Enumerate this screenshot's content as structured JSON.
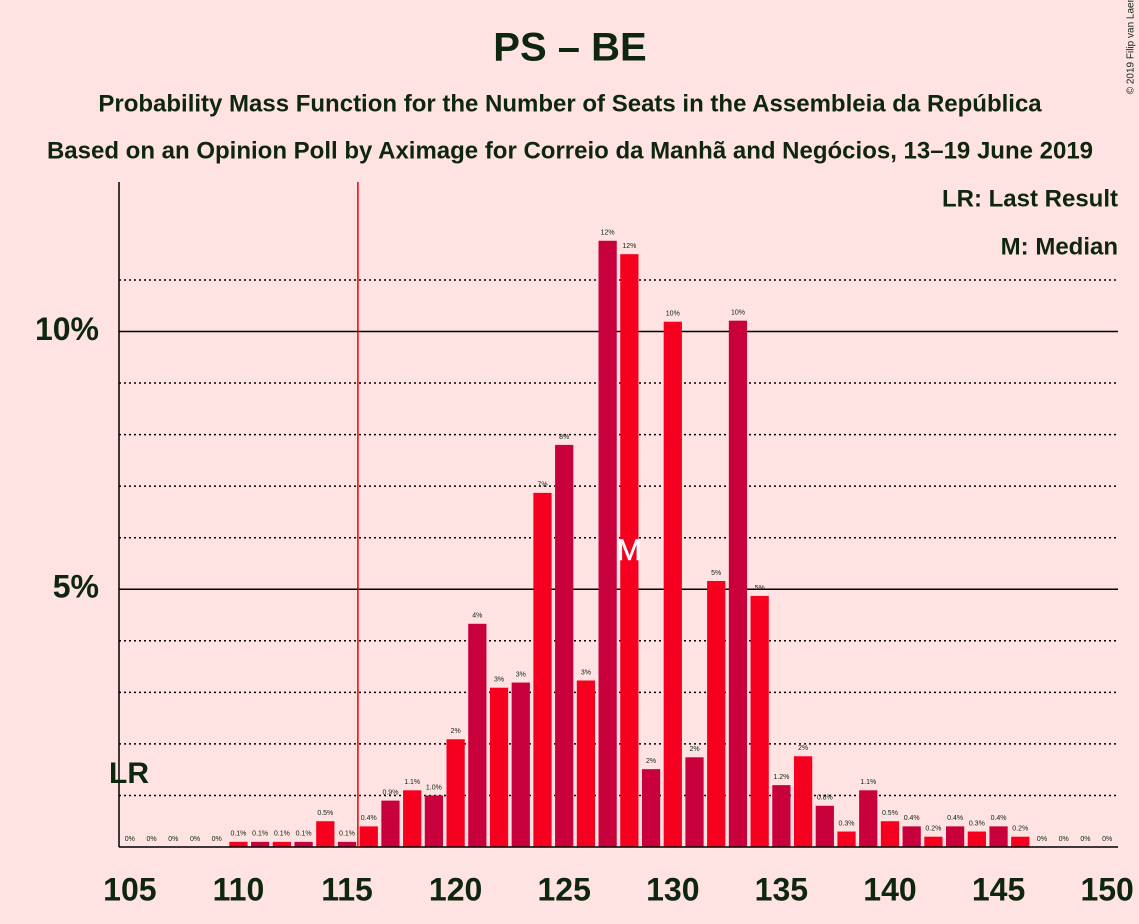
{
  "chart_data": {
    "type": "bar",
    "title": "PS – BE",
    "subtitle": "Probability Mass Function for the Number of Seats in the Assembleia da República",
    "subtitle2": "Based on an Opinion Poll by Aximage for Correio da Manhã and Negócios, 13–19 June 2019",
    "copyright": "© 2019 Filip van Laenen",
    "legend": [
      "LR: Last Result",
      "M: Median"
    ],
    "last_result": 116,
    "last_result_label": "LR",
    "median": 128,
    "median_label": "M",
    "x": [
      105,
      106,
      107,
      108,
      109,
      110,
      111,
      112,
      113,
      114,
      115,
      116,
      117,
      118,
      119,
      120,
      121,
      122,
      123,
      124,
      125,
      126,
      127,
      128,
      129,
      130,
      131,
      132,
      133,
      134,
      135,
      136,
      137,
      138,
      139,
      140,
      141,
      142,
      143,
      144,
      145,
      146,
      147,
      148,
      149,
      150
    ],
    "values": [
      0,
      0,
      0,
      0,
      0,
      0.1,
      0.1,
      0.1,
      0.1,
      0.5,
      0.1,
      0.4,
      0.9,
      1.1,
      1.0,
      2.09,
      4.33,
      3.09,
      3.19,
      6.87,
      7.8,
      3.23,
      11.76,
      11.5,
      1.51,
      10.19,
      1.74,
      5.16,
      10.21,
      4.87,
      1.2,
      1.76,
      0.8,
      0.3,
      1.1,
      0.5,
      0.4,
      0.2,
      0.4,
      0.3,
      0.4,
      0.2,
      0,
      0,
      0,
      0
    ],
    "value_labels": [
      "0%",
      "0%",
      "0%",
      "0%",
      "0%",
      "0.1%",
      "0.1%",
      "0.1%",
      "0.1%",
      "0.5%",
      "0.1%",
      "0.4%",
      "0.9%",
      "1.1%",
      "1.0%",
      "2%",
      "4%",
      "3%",
      "3%",
      "7%",
      "8%",
      "3%",
      "12%",
      "12%",
      "2%",
      "10%",
      "2%",
      "5%",
      "10%",
      "5%",
      "1.2%",
      "2%",
      "0.8%",
      "0.3%",
      "1.1%",
      "0.5%",
      "0.4%",
      "0.2%",
      "0.4%",
      "0.3%",
      "0.4%",
      "0.2%",
      "0%",
      "0%",
      "0%",
      "0%"
    ],
    "colors": [
      "#f5001f",
      "#c8003c"
    ],
    "xlim": [
      104.5,
      150.5
    ],
    "ylim": [
      0,
      12.9
    ],
    "xticks": [
      105,
      110,
      115,
      120,
      125,
      130,
      135,
      140,
      145,
      150
    ],
    "yticks": [
      {
        "value": 5,
        "label": "5%"
      },
      {
        "value": 10,
        "label": "10%"
      }
    ],
    "minor_yticks": [
      1,
      2,
      3,
      4,
      6,
      7,
      8,
      9,
      11
    ]
  }
}
